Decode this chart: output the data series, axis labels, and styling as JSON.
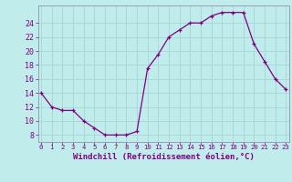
{
  "x": [
    0,
    1,
    2,
    3,
    4,
    5,
    6,
    7,
    8,
    9,
    10,
    11,
    12,
    13,
    14,
    15,
    16,
    17,
    18,
    19,
    20,
    21,
    22,
    23
  ],
  "y": [
    14,
    12,
    11.5,
    11.5,
    10,
    9,
    8,
    8,
    8,
    8.5,
    17.5,
    19.5,
    22,
    23,
    24,
    24,
    25,
    25.5,
    25.5,
    25.5,
    21,
    18.5,
    16,
    14.5
  ],
  "line_color": "#800080",
  "marker_color": "#800080",
  "bg_color": "#c0ecec",
  "grid_color": "#a8d8d8",
  "xlabel": "Windchill (Refroidissement éolien,°C)",
  "yticks": [
    8,
    10,
    12,
    14,
    16,
    18,
    20,
    22,
    24
  ],
  "xticks": [
    0,
    1,
    2,
    3,
    4,
    5,
    6,
    7,
    8,
    9,
    10,
    11,
    12,
    13,
    14,
    15,
    16,
    17,
    18,
    19,
    20,
    21,
    22,
    23
  ],
  "ylim": [
    7.0,
    26.5
  ],
  "xlim": [
    -0.3,
    23.3
  ],
  "label_color": "#800080",
  "tick_color": "#800080",
  "spine_color": "#9090b0",
  "font_family": "monospace",
  "xlabel_fontsize": 6.5,
  "xtick_fontsize": 5.2,
  "ytick_fontsize": 6.0
}
